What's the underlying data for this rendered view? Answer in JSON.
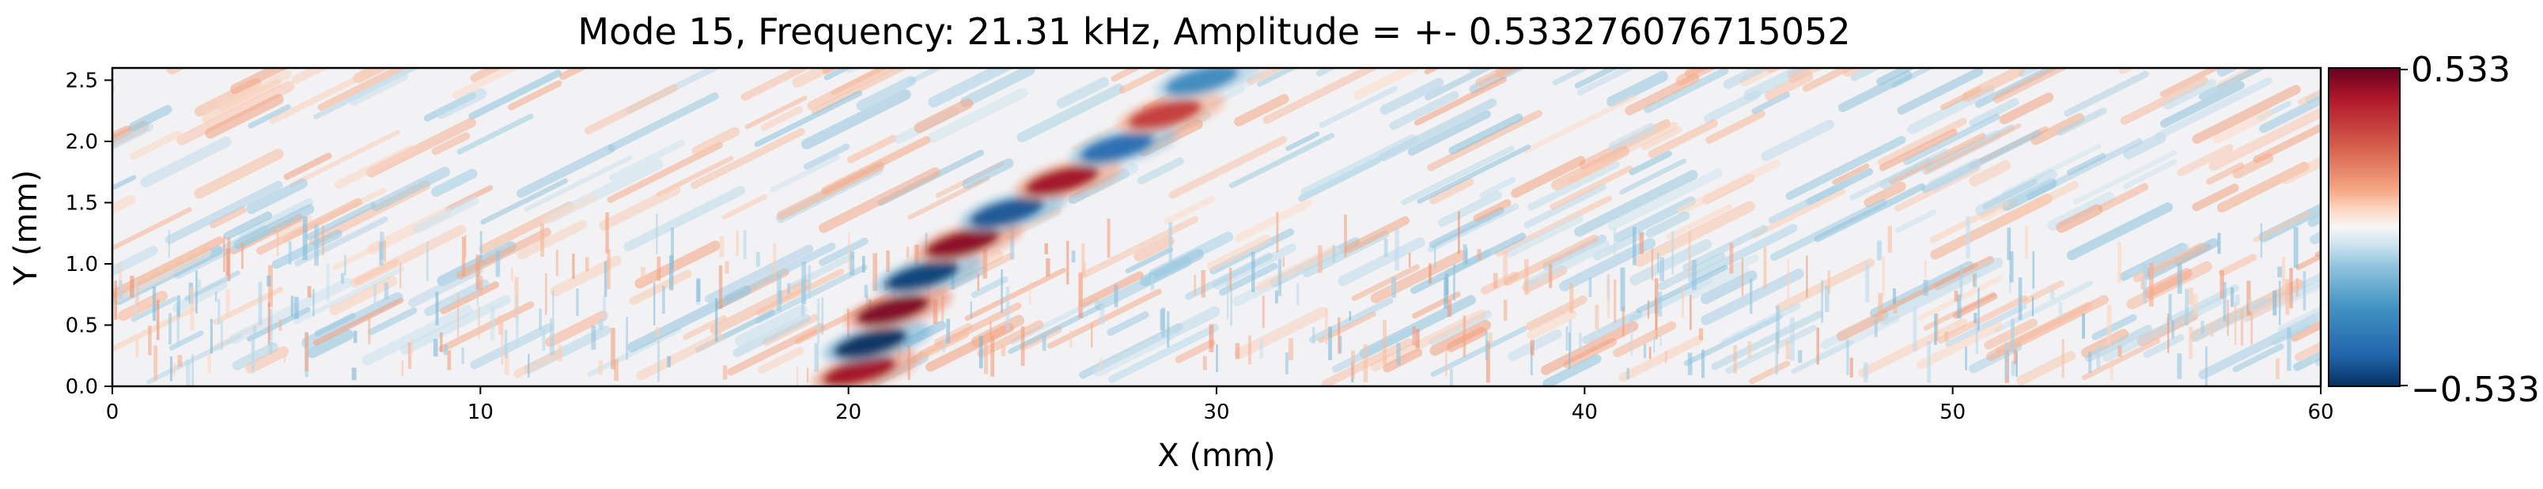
{
  "chart_data": {
    "type": "heatmap",
    "title": "Mode 15, Frequency: 21.31 kHz, Amplitude = +- 0.533276076715052",
    "xlabel": "X (mm)",
    "ylabel": "Y (mm)",
    "xlim": [
      0,
      60
    ],
    "ylim": [
      0,
      2.6
    ],
    "x_ticks": [
      0,
      10,
      20,
      30,
      40,
      50,
      60
    ],
    "x_tick_labels": [
      "0",
      "10",
      "20",
      "30",
      "40",
      "50",
      "60"
    ],
    "y_ticks": [
      0.0,
      0.5,
      1.0,
      1.5,
      2.0,
      2.5
    ],
    "y_tick_labels": [
      "0.0",
      "0.5",
      "1.0",
      "1.5",
      "2.0",
      "2.5"
    ],
    "colormap": "RdBu_r",
    "colors": {
      "min": "#053061",
      "low": "#2166ac",
      "mid_low": "#92c5de",
      "center": "#f7f7f7",
      "mid_high": "#f4a582",
      "high": "#b2182b",
      "max": "#67001f"
    },
    "value_range": [
      -0.533,
      0.533
    ],
    "colorbar": {
      "min_label": "−0.533",
      "max_label": "0.533"
    },
    "grid": false,
    "features": [
      {
        "name": "wave-band",
        "description_points_x": [
          20.3,
          20.6,
          21.2,
          22.0,
          23.1,
          24.3,
          25.8,
          27.3,
          28.6,
          29.6
        ],
        "description_points_y": [
          0.12,
          0.35,
          0.62,
          0.9,
          1.17,
          1.42,
          1.68,
          1.95,
          2.22,
          2.5
        ],
        "peak_signs": [
          1,
          -1,
          1,
          -1,
          1,
          -1,
          1,
          -1,
          1,
          -1
        ],
        "peak_amplitudes": [
          0.45,
          -0.53,
          0.5,
          -0.5,
          0.48,
          -0.46,
          0.45,
          -0.4,
          0.35,
          -0.3
        ]
      }
    ]
  }
}
